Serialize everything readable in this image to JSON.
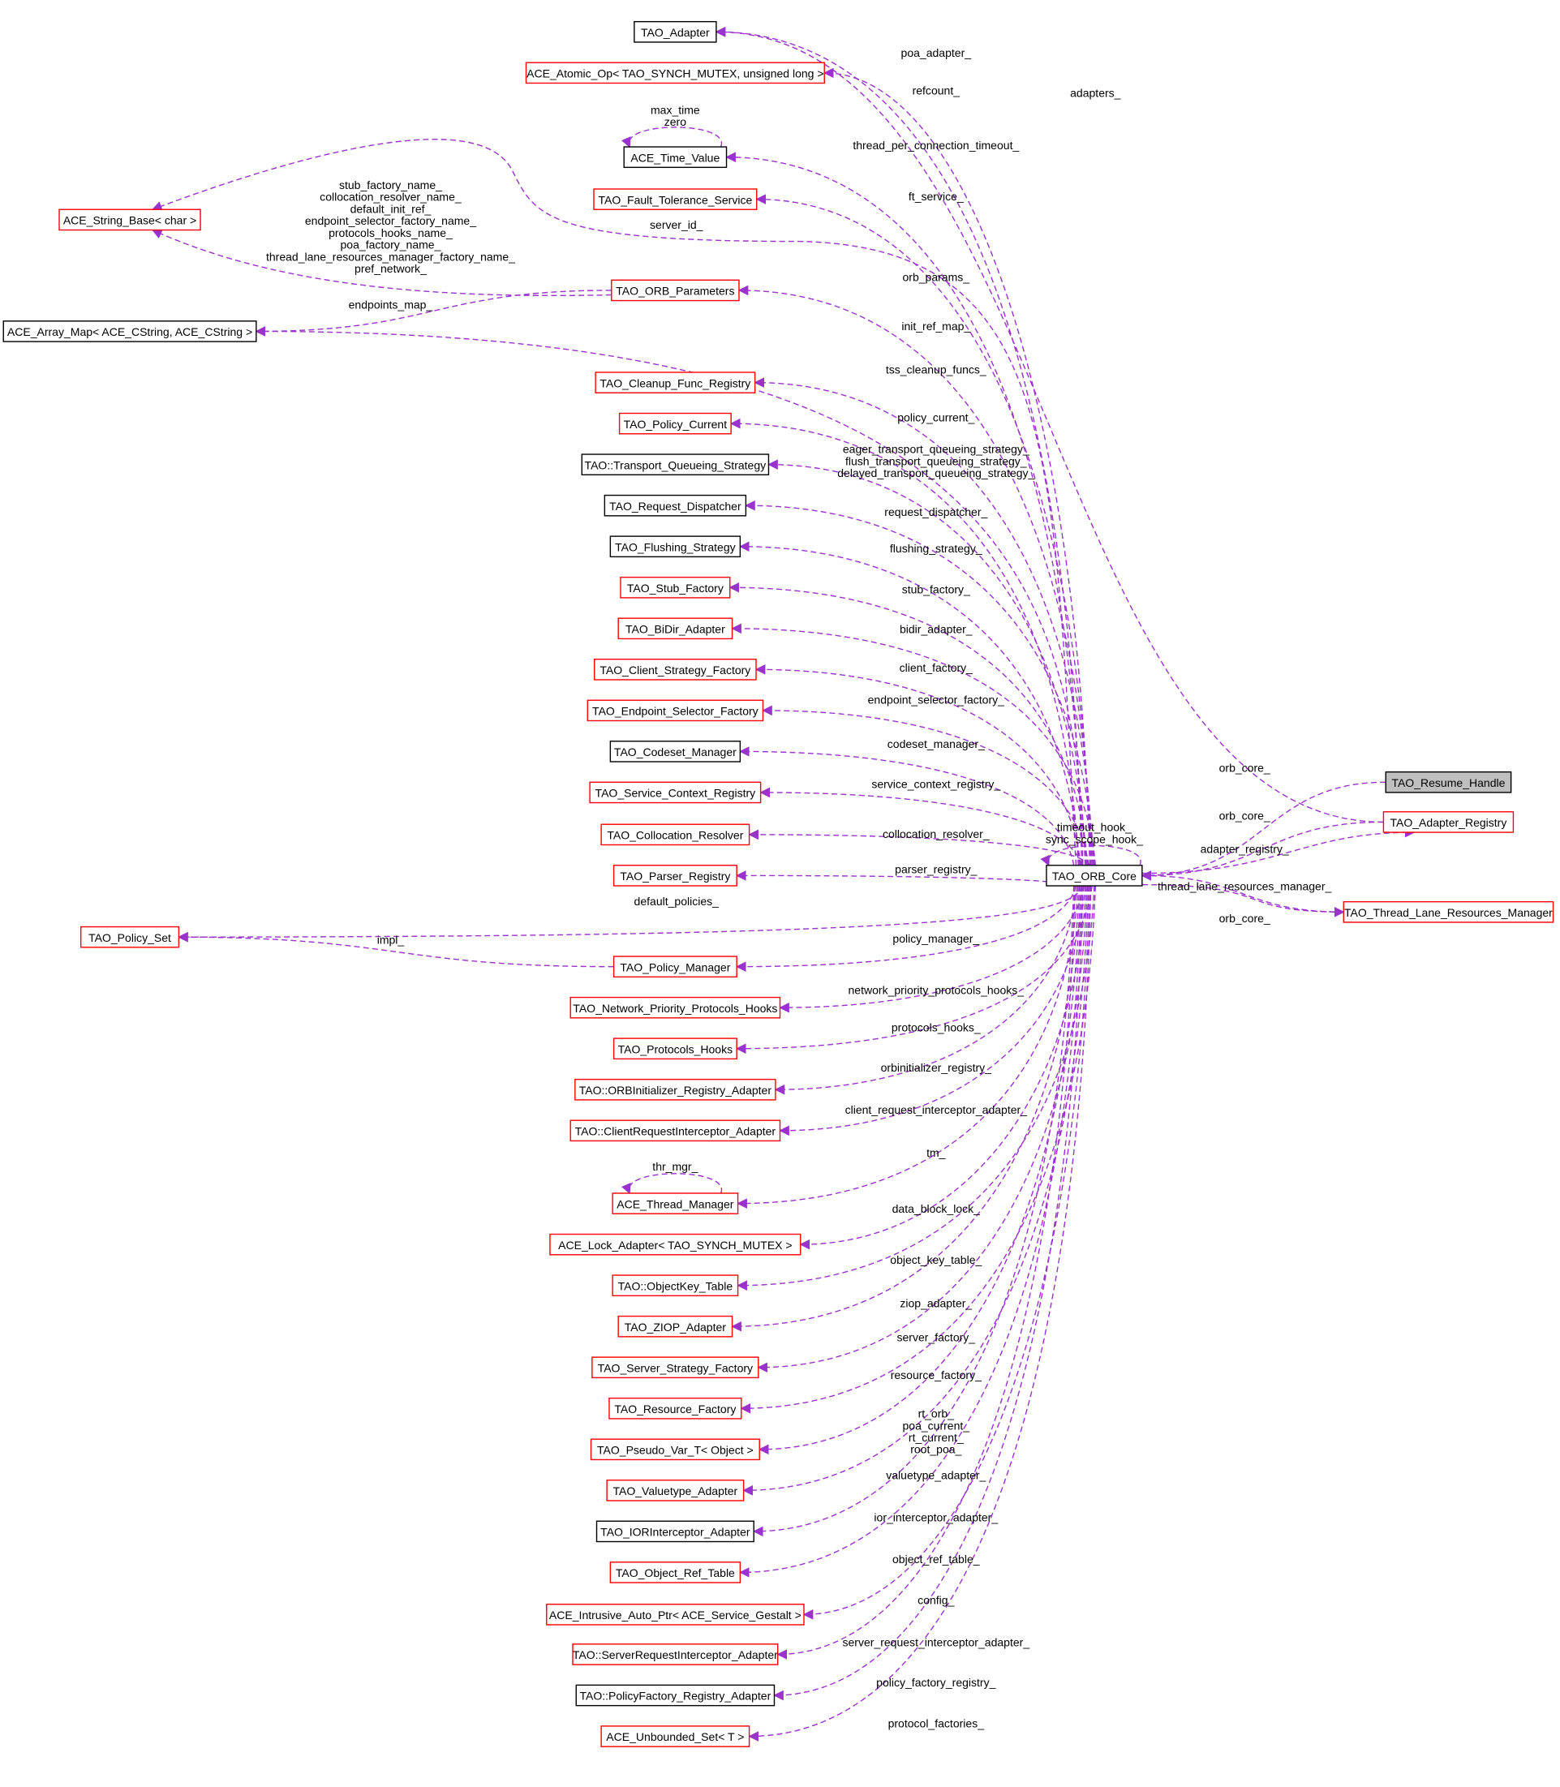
{
  "diagram": {
    "colors": {
      "edge": "#9a32cd",
      "red_border": "#ff0000",
      "black_border": "#000000",
      "focus_fill": "#bfbfbf",
      "background": "#ffffff"
    },
    "nodes": [
      {
        "id": "adapter",
        "label": "TAO_Adapter",
        "border": "black"
      },
      {
        "id": "atomic",
        "label": "ACE_Atomic_Op< TAO_SYNCH_MUTEX, unsigned long >",
        "border": "red"
      },
      {
        "id": "timevalue",
        "label": "ACE_Time_Value",
        "border": "black"
      },
      {
        "id": "ft",
        "label": "TAO_Fault_Tolerance_Service",
        "border": "red"
      },
      {
        "id": "stringbase",
        "label": "ACE_String_Base< char >",
        "border": "red"
      },
      {
        "id": "orbparams",
        "label": "TAO_ORB_Parameters",
        "border": "red"
      },
      {
        "id": "arraymap",
        "label": "ACE_Array_Map< ACE_CString, ACE_CString >",
        "border": "black"
      },
      {
        "id": "cleanup",
        "label": "TAO_Cleanup_Func_Registry",
        "border": "red"
      },
      {
        "id": "policycurrent",
        "label": "TAO_Policy_Current",
        "border": "red"
      },
      {
        "id": "tqs",
        "label": "TAO::Transport_Queueing_Strategy",
        "border": "black"
      },
      {
        "id": "reqdisp",
        "label": "TAO_Request_Dispatcher",
        "border": "black"
      },
      {
        "id": "flushing",
        "label": "TAO_Flushing_Strategy",
        "border": "black"
      },
      {
        "id": "stubfactory",
        "label": "TAO_Stub_Factory",
        "border": "red"
      },
      {
        "id": "bidir",
        "label": "TAO_BiDir_Adapter",
        "border": "red"
      },
      {
        "id": "clientstrat",
        "label": "TAO_Client_Strategy_Factory",
        "border": "red"
      },
      {
        "id": "endpointsel",
        "label": "TAO_Endpoint_Selector_Factory",
        "border": "red"
      },
      {
        "id": "codeset",
        "label": "TAO_Codeset_Manager",
        "border": "black"
      },
      {
        "id": "svcctx",
        "label": "TAO_Service_Context_Registry",
        "border": "red"
      },
      {
        "id": "colloc",
        "label": "TAO_Collocation_Resolver",
        "border": "red"
      },
      {
        "id": "parser",
        "label": "TAO_Parser_Registry",
        "border": "red"
      },
      {
        "id": "policyset",
        "label": "TAO_Policy_Set",
        "border": "red"
      },
      {
        "id": "policymgr",
        "label": "TAO_Policy_Manager",
        "border": "red"
      },
      {
        "id": "netprio",
        "label": "TAO_Network_Priority_Protocols_Hooks",
        "border": "red"
      },
      {
        "id": "protohooks",
        "label": "TAO_Protocols_Hooks",
        "border": "red"
      },
      {
        "id": "orbinit",
        "label": "TAO::ORBInitializer_Registry_Adapter",
        "border": "red"
      },
      {
        "id": "clientreq",
        "label": "TAO::ClientRequestInterceptor_Adapter",
        "border": "red"
      },
      {
        "id": "threadmgr",
        "label": "ACE_Thread_Manager",
        "border": "red"
      },
      {
        "id": "lockadapter",
        "label": "ACE_Lock_Adapter< TAO_SYNCH_MUTEX >",
        "border": "red"
      },
      {
        "id": "objkey",
        "label": "TAO::ObjectKey_Table",
        "border": "red"
      },
      {
        "id": "ziop",
        "label": "TAO_ZIOP_Adapter",
        "border": "red"
      },
      {
        "id": "serverstrat",
        "label": "TAO_Server_Strategy_Factory",
        "border": "red"
      },
      {
        "id": "resfactory",
        "label": "TAO_Resource_Factory",
        "border": "red"
      },
      {
        "id": "pseudovar",
        "label": "TAO_Pseudo_Var_T< Object >",
        "border": "red"
      },
      {
        "id": "valuetype",
        "label": "TAO_Valuetype_Adapter",
        "border": "red"
      },
      {
        "id": "iorint",
        "label": "TAO_IORInterceptor_Adapter",
        "border": "black"
      },
      {
        "id": "objref",
        "label": "TAO_Object_Ref_Table",
        "border": "red"
      },
      {
        "id": "intrusive",
        "label": "ACE_Intrusive_Auto_Ptr< ACE_Service_Gestalt >",
        "border": "red"
      },
      {
        "id": "serverreq",
        "label": "TAO::ServerRequestInterceptor_Adapter",
        "border": "red"
      },
      {
        "id": "policyfactory",
        "label": "TAO::PolicyFactory_Registry_Adapter",
        "border": "black"
      },
      {
        "id": "unbounded",
        "label": "ACE_Unbounded_Set< T >",
        "border": "red"
      },
      {
        "id": "orbcore",
        "label": "TAO_ORB_Core",
        "border": "black"
      },
      {
        "id": "resume",
        "label": "TAO_Resume_Handle",
        "border": "black",
        "focus": true
      },
      {
        "id": "adapterreg",
        "label": "TAO_Adapter_Registry",
        "border": "red"
      },
      {
        "id": "tlrm",
        "label": "TAO_Thread_Lane_Resources_Manager",
        "border": "red"
      }
    ],
    "edges": [
      {
        "from": "adapterreg",
        "to": "adapter",
        "labels": [
          "adapters_"
        ]
      },
      {
        "from": "orbcore",
        "to": "adapter",
        "labels": [
          "poa_adapter_"
        ]
      },
      {
        "from": "orbcore",
        "to": "atomic",
        "labels": [
          "refcount_"
        ]
      },
      {
        "from": "timevalue",
        "to": "timevalue",
        "labels": [
          "max_time",
          "zero"
        ]
      },
      {
        "from": "orbcore",
        "to": "timevalue",
        "labels": [
          "thread_per_connection_timeout_"
        ]
      },
      {
        "from": "orbcore",
        "to": "ft",
        "labels": [
          "ft_service_"
        ]
      },
      {
        "from": "orbcore",
        "to": "stringbase",
        "labels": [
          "server_id_"
        ]
      },
      {
        "from": "orbparams",
        "to": "stringbase",
        "labels": [
          "stub_factory_name_",
          "collocation_resolver_name_",
          "default_init_ref_",
          "endpoint_selector_factory_name_",
          "protocols_hooks_name_",
          "poa_factory_name_",
          "thread_lane_resources_manager_factory_name_",
          "pref_network_"
        ]
      },
      {
        "from": "orbcore",
        "to": "orbparams",
        "labels": [
          "orb_params_"
        ]
      },
      {
        "from": "orbparams",
        "to": "arraymap",
        "labels": [
          "endpoints_map_"
        ]
      },
      {
        "from": "orbcore",
        "to": "arraymap",
        "labels": [
          "init_ref_map_"
        ]
      },
      {
        "from": "orbcore",
        "to": "cleanup",
        "labels": [
          "tss_cleanup_funcs_"
        ]
      },
      {
        "from": "orbcore",
        "to": "policycurrent",
        "labels": [
          "policy_current_"
        ]
      },
      {
        "from": "orbcore",
        "to": "tqs",
        "labels": [
          "eager_transport_queueing_strategy_",
          "flush_transport_queueing_strategy_",
          "delayed_transport_queueing_strategy_"
        ]
      },
      {
        "from": "orbcore",
        "to": "reqdisp",
        "labels": [
          "request_dispatcher_"
        ]
      },
      {
        "from": "orbcore",
        "to": "flushing",
        "labels": [
          "flushing_strategy_"
        ]
      },
      {
        "from": "orbcore",
        "to": "stubfactory",
        "labels": [
          "stub_factory_"
        ]
      },
      {
        "from": "orbcore",
        "to": "bidir",
        "labels": [
          "bidir_adapter_"
        ]
      },
      {
        "from": "orbcore",
        "to": "clientstrat",
        "labels": [
          "client_factory_"
        ]
      },
      {
        "from": "orbcore",
        "to": "endpointsel",
        "labels": [
          "endpoint_selector_factory_"
        ]
      },
      {
        "from": "orbcore",
        "to": "codeset",
        "labels": [
          "codeset_manager_"
        ]
      },
      {
        "from": "orbcore",
        "to": "svcctx",
        "labels": [
          "service_context_registry_"
        ]
      },
      {
        "from": "orbcore",
        "to": "colloc",
        "labels": [
          "collocation_resolver_"
        ]
      },
      {
        "from": "orbcore",
        "to": "parser",
        "labels": [
          "parser_registry_"
        ]
      },
      {
        "from": "orbcore",
        "to": "policyset",
        "labels": [
          "default_policies_"
        ]
      },
      {
        "from": "policymgr",
        "to": "policyset",
        "labels": [
          "impl_"
        ]
      },
      {
        "from": "orbcore",
        "to": "policymgr",
        "labels": [
          "policy_manager_"
        ]
      },
      {
        "from": "orbcore",
        "to": "netprio",
        "labels": [
          "network_priority_protocols_hooks_"
        ]
      },
      {
        "from": "orbcore",
        "to": "protohooks",
        "labels": [
          "protocols_hooks_"
        ]
      },
      {
        "from": "orbcore",
        "to": "orbinit",
        "labels": [
          "orbinitializer_registry_"
        ]
      },
      {
        "from": "orbcore",
        "to": "clientreq",
        "labels": [
          "client_request_interceptor_adapter_"
        ]
      },
      {
        "from": "threadmgr",
        "to": "threadmgr",
        "labels": [
          "thr_mgr_"
        ]
      },
      {
        "from": "orbcore",
        "to": "threadmgr",
        "labels": [
          "tm_"
        ]
      },
      {
        "from": "orbcore",
        "to": "lockadapter",
        "labels": [
          "data_block_lock_"
        ]
      },
      {
        "from": "orbcore",
        "to": "objkey",
        "labels": [
          "object_key_table_"
        ]
      },
      {
        "from": "orbcore",
        "to": "ziop",
        "labels": [
          "ziop_adapter_"
        ]
      },
      {
        "from": "orbcore",
        "to": "serverstrat",
        "labels": [
          "server_factory_"
        ]
      },
      {
        "from": "orbcore",
        "to": "resfactory",
        "labels": [
          "resource_factory_"
        ]
      },
      {
        "from": "orbcore",
        "to": "pseudovar",
        "labels": [
          "rt_orb_",
          "poa_current_",
          "rt_current_",
          "root_poa_"
        ]
      },
      {
        "from": "orbcore",
        "to": "valuetype",
        "labels": [
          "valuetype_adapter_"
        ]
      },
      {
        "from": "orbcore",
        "to": "iorint",
        "labels": [
          "ior_interceptor_adapter_"
        ]
      },
      {
        "from": "orbcore",
        "to": "objref",
        "labels": [
          "object_ref_table_"
        ]
      },
      {
        "from": "orbcore",
        "to": "intrusive",
        "labels": [
          "config_"
        ]
      },
      {
        "from": "orbcore",
        "to": "serverreq",
        "labels": [
          "server_request_interceptor_adapter_"
        ]
      },
      {
        "from": "orbcore",
        "to": "policyfactory",
        "labels": [
          "policy_factory_registry_"
        ]
      },
      {
        "from": "orbcore",
        "to": "unbounded",
        "labels": [
          "protocol_factories_"
        ]
      },
      {
        "from": "orbcore",
        "to": "orbcore",
        "labels": [
          "timeout_hook_",
          "sync_scope_hook_"
        ]
      },
      {
        "from": "resume",
        "to": "orbcore",
        "labels": [
          "orb_core_"
        ]
      },
      {
        "from": "adapterreg",
        "to": "orbcore",
        "labels": [
          "orb_core_"
        ]
      },
      {
        "from": "orbcore",
        "to": "adapterreg",
        "labels": [
          "adapter_registry_"
        ]
      },
      {
        "from": "orbcore",
        "to": "tlrm",
        "labels": [
          "thread_lane_resources_manager_"
        ]
      },
      {
        "from": "tlrm",
        "to": "orbcore",
        "labels": [
          "orb_core_"
        ]
      }
    ]
  }
}
